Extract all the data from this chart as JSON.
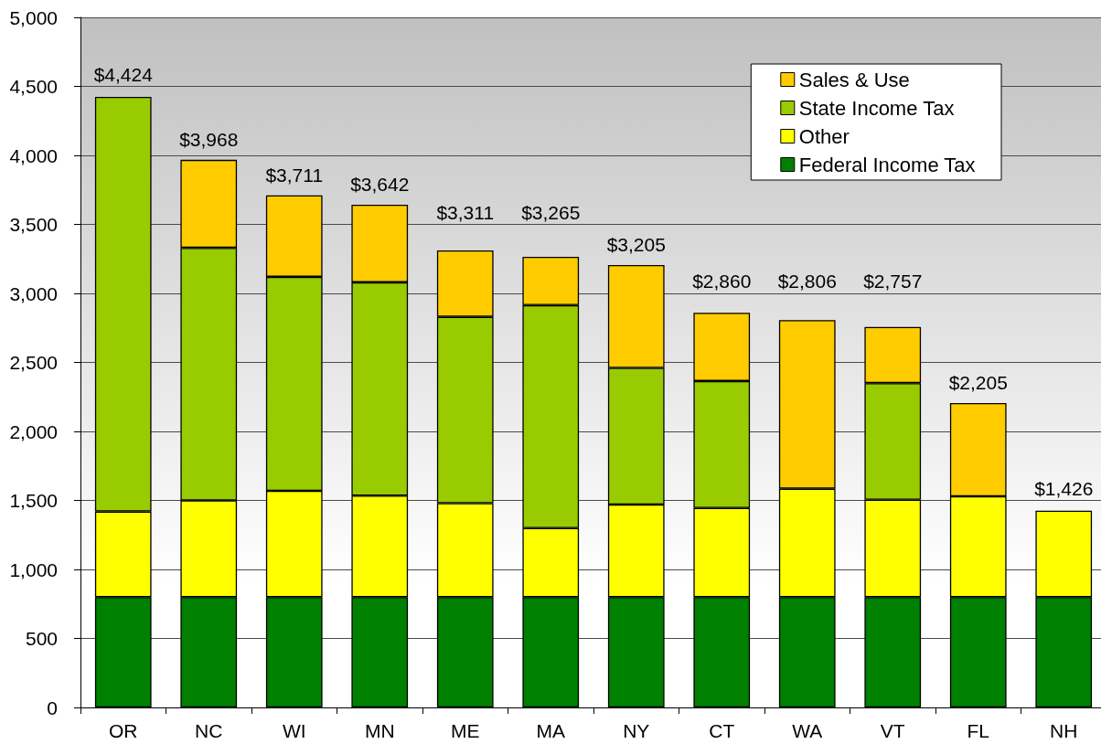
{
  "chart_data": {
    "type": "bar",
    "stacked": true,
    "categories": [
      "OR",
      "NC",
      "WI",
      "MN",
      "ME",
      "MA",
      "NY",
      "CT",
      "WA",
      "VT",
      "FL",
      "NH"
    ],
    "series": [
      {
        "name": "Federal Income Tax",
        "color": "#008000",
        "values": [
          800,
          800,
          800,
          800,
          800,
          800,
          800,
          800,
          800,
          800,
          800,
          800
        ]
      },
      {
        "name": "Other",
        "color": "#ffff00",
        "values": [
          620,
          700,
          770,
          735,
          680,
          500,
          670,
          645,
          785,
          705,
          730,
          626
        ]
      },
      {
        "name": "State Income Tax",
        "color": "#99cc00",
        "values": [
          3004,
          1830,
          1550,
          1545,
          1350,
          1615,
          990,
          920,
          null,
          845,
          null,
          null
        ]
      },
      {
        "name": "Sales & Use",
        "color": "#ffcc00",
        "values": [
          null,
          638,
          591,
          562,
          481,
          350,
          745,
          495,
          1221,
          407,
          675,
          null
        ]
      }
    ],
    "totals": [
      "$4,424",
      "$3,968",
      "$3,711",
      "$3,642",
      "$3,311",
      "$3,265",
      "$3,205",
      "$2,860",
      "$2,806",
      "$2,757",
      "$2,205",
      "$1,426"
    ],
    "ylim": [
      0,
      5000
    ],
    "yticks": [
      0,
      500,
      {
        "value": 1000,
        "label": "1,000"
      },
      {
        "value": 1500,
        "label": "1,500"
      },
      {
        "value": 2000,
        "label": "2,000"
      },
      {
        "value": 2500,
        "label": "2,500"
      },
      {
        "value": 3000,
        "label": "3,000"
      },
      {
        "value": 3500,
        "label": "3,500"
      },
      {
        "value": 4000,
        "label": "4,000"
      },
      {
        "value": 4500,
        "label": "4,500"
      },
      {
        "value": 5000,
        "label": "5,000"
      }
    ],
    "grid": "y",
    "legend": "top right"
  }
}
